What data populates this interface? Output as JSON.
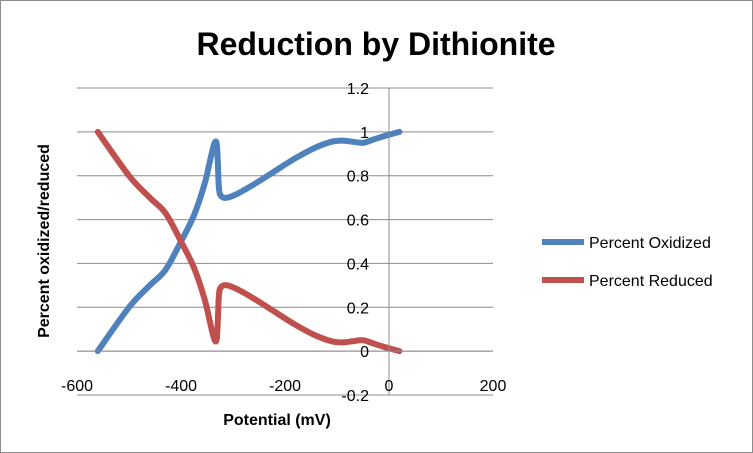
{
  "chart_data": {
    "type": "line",
    "title": "Reduction by Dithionite",
    "xlabel": "Potential (mV)",
    "ylabel": "Percent oxidized/reduced",
    "xlim": [
      -600,
      200
    ],
    "ylim": [
      -0.2,
      1.2
    ],
    "xticks": [
      -600,
      -400,
      -200,
      0,
      200
    ],
    "xtick_labels": [
      "-600",
      "-400",
      "-200",
      "0",
      "200"
    ],
    "yticks": [
      -0.2,
      0,
      0.2,
      0.4,
      0.6,
      0.8,
      1,
      1.2
    ],
    "ytick_labels": [
      "-0.2",
      "0",
      "0.2",
      "0.4",
      "0.6",
      "0.8",
      "1",
      "1.2"
    ],
    "grid": true,
    "legend_position": "right",
    "series": [
      {
        "name": "Percent Oxidized",
        "color": "#4f81bd",
        "x": [
          -560,
          -500,
          -460,
          -430,
          -400,
          -375,
          -355,
          -345,
          -338,
          -334,
          -331,
          -329,
          -327,
          -322,
          -310,
          -290,
          -260,
          -220,
          -180,
          -140,
          -110,
          -90,
          -70,
          -50,
          -30,
          -10,
          20
        ],
        "y": [
          0,
          0.2,
          0.3,
          0.37,
          0.5,
          0.62,
          0.76,
          0.86,
          0.93,
          0.955,
          0.94,
          0.85,
          0.74,
          0.705,
          0.7,
          0.72,
          0.76,
          0.82,
          0.88,
          0.93,
          0.955,
          0.96,
          0.955,
          0.95,
          0.965,
          0.98,
          1
        ]
      },
      {
        "name": "Percent Reduced",
        "color": "#c0504d",
        "x": [
          -560,
          -500,
          -460,
          -430,
          -400,
          -375,
          -355,
          -345,
          -338,
          -334,
          -331,
          -329,
          -327,
          -322,
          -310,
          -290,
          -260,
          -220,
          -180,
          -140,
          -110,
          -90,
          -70,
          -50,
          -30,
          -10,
          20
        ],
        "y": [
          1,
          0.8,
          0.7,
          0.63,
          0.5,
          0.38,
          0.24,
          0.14,
          0.07,
          0.045,
          0.06,
          0.15,
          0.26,
          0.295,
          0.3,
          0.28,
          0.24,
          0.18,
          0.12,
          0.07,
          0.045,
          0.04,
          0.045,
          0.05,
          0.035,
          0.02,
          0
        ]
      }
    ]
  }
}
